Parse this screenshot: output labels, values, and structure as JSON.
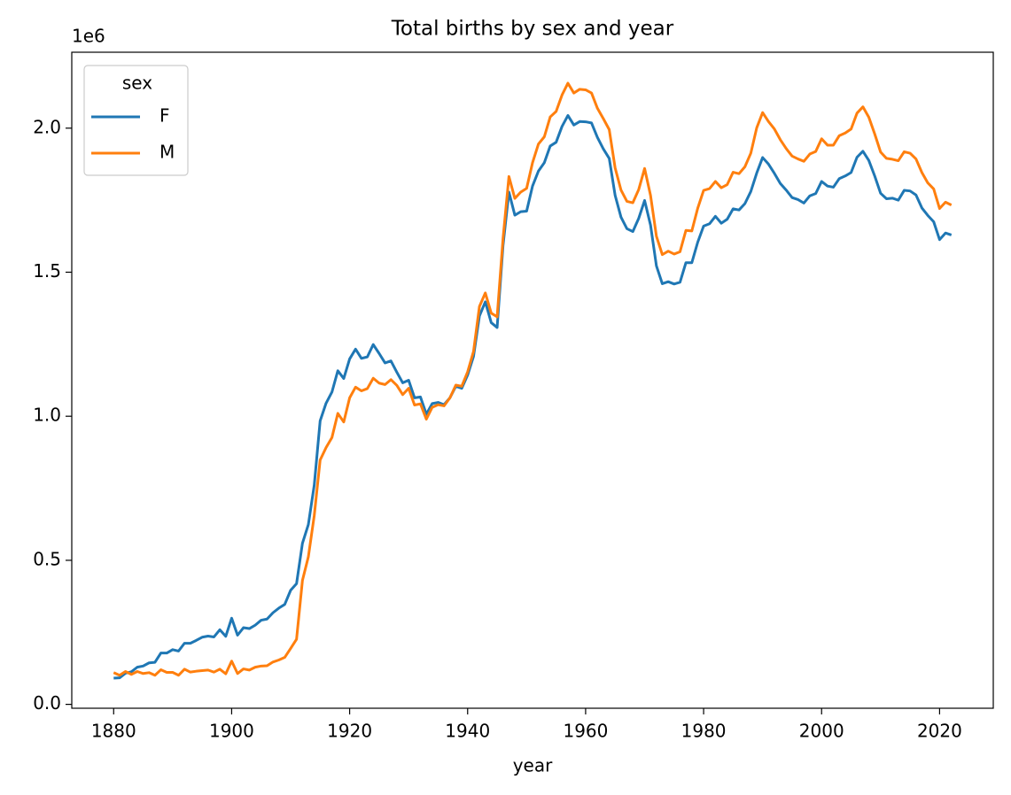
{
  "chart_data": {
    "type": "line",
    "title": "Total births by sex and year",
    "xlabel": "year",
    "y_offset_label": "1e6",
    "legend_title": "sex",
    "legend_loc": "upper left",
    "x": [
      1880,
      1881,
      1882,
      1883,
      1884,
      1885,
      1886,
      1887,
      1888,
      1889,
      1890,
      1891,
      1892,
      1893,
      1894,
      1895,
      1896,
      1897,
      1898,
      1899,
      1900,
      1901,
      1902,
      1903,
      1904,
      1905,
      1906,
      1907,
      1908,
      1909,
      1910,
      1911,
      1912,
      1913,
      1914,
      1915,
      1916,
      1917,
      1918,
      1919,
      1920,
      1921,
      1922,
      1923,
      1924,
      1925,
      1926,
      1927,
      1928,
      1929,
      1930,
      1931,
      1932,
      1933,
      1934,
      1935,
      1936,
      1937,
      1938,
      1939,
      1940,
      1941,
      1942,
      1943,
      1944,
      1945,
      1946,
      1947,
      1948,
      1949,
      1950,
      1951,
      1952,
      1953,
      1954,
      1955,
      1956,
      1957,
      1958,
      1959,
      1960,
      1961,
      1962,
      1963,
      1964,
      1965,
      1966,
      1967,
      1968,
      1969,
      1970,
      1971,
      1972,
      1973,
      1974,
      1975,
      1976,
      1977,
      1978,
      1979,
      1980,
      1981,
      1982,
      1983,
      1984,
      1985,
      1986,
      1987,
      1988,
      1989,
      1990,
      1991,
      1992,
      1993,
      1994,
      1995,
      1996,
      1997,
      1998,
      1999,
      2000,
      2001,
      2002,
      2003,
      2004,
      2005,
      2006,
      2007,
      2008,
      2009,
      2010,
      2011,
      2012,
      2013,
      2014,
      2015,
      2016,
      2017,
      2018,
      2019,
      2020,
      2021,
      2022
    ],
    "series": [
      {
        "name": "F",
        "color": "#1f77b4",
        "values": [
          91000,
          92000,
          108000,
          113000,
          129000,
          133000,
          144000,
          146000,
          178000,
          178000,
          190000,
          185000,
          212000,
          212000,
          222000,
          233000,
          237000,
          234000,
          259000,
          236000,
          299000,
          240000,
          266000,
          263000,
          275000,
          292000,
          296000,
          318000,
          334000,
          347000,
          396000,
          419000,
          559000,
          624000,
          761000,
          984000,
          1045000,
          1084000,
          1158000,
          1131000,
          1199000,
          1233000,
          1201000,
          1206000,
          1249000,
          1218000,
          1185000,
          1192000,
          1153000,
          1116000,
          1125000,
          1064000,
          1067000,
          1007000,
          1044000,
          1048000,
          1040000,
          1064000,
          1104000,
          1097000,
          1143000,
          1208000,
          1348000,
          1397000,
          1325000,
          1308000,
          1593000,
          1778000,
          1698000,
          1710000,
          1712000,
          1799000,
          1851000,
          1880000,
          1938000,
          1951000,
          2006000,
          2044000,
          2011000,
          2023000,
          2022000,
          2018000,
          1968000,
          1928000,
          1895000,
          1767000,
          1691000,
          1651000,
          1641000,
          1687000,
          1749000,
          1664000,
          1522000,
          1460000,
          1467000,
          1459000,
          1465000,
          1533000,
          1533000,
          1604000,
          1660000,
          1668000,
          1694000,
          1670000,
          1684000,
          1720000,
          1716000,
          1738000,
          1780000,
          1844000,
          1898000,
          1875000,
          1843000,
          1808000,
          1785000,
          1759000,
          1752000,
          1740000,
          1765000,
          1773000,
          1815000,
          1799000,
          1795000,
          1825000,
          1834000,
          1846000,
          1899000,
          1920000,
          1888000,
          1834000,
          1774000,
          1755000,
          1757000,
          1750000,
          1784000,
          1782000,
          1768000,
          1723000,
          1697000,
          1675000,
          1613000,
          1636000,
          1629000
        ]
      },
      {
        "name": "M",
        "color": "#ff7f0e",
        "values": [
          110000,
          101000,
          114000,
          104000,
          114000,
          107000,
          110000,
          101000,
          120000,
          111000,
          111000,
          101000,
          122000,
          112000,
          115000,
          117000,
          119000,
          112000,
          122000,
          106000,
          150000,
          107000,
          123000,
          119000,
          129000,
          133000,
          134000,
          147000,
          154000,
          163000,
          194000,
          226000,
          430000,
          512000,
          655000,
          848000,
          891000,
          926000,
          1010000,
          980000,
          1064000,
          1101000,
          1088000,
          1096000,
          1132000,
          1115000,
          1110000,
          1127000,
          1107000,
          1075000,
          1097000,
          1039000,
          1043000,
          990000,
          1031000,
          1040000,
          1036000,
          1064000,
          1108000,
          1104000,
          1154000,
          1225000,
          1381000,
          1428000,
          1358000,
          1345000,
          1617000,
          1832000,
          1756000,
          1778000,
          1791000,
          1880000,
          1945000,
          1970000,
          2039000,
          2058000,
          2115000,
          2156000,
          2122000,
          2135000,
          2133000,
          2122000,
          2069000,
          2033000,
          1995000,
          1862000,
          1785000,
          1746000,
          1741000,
          1787000,
          1860000,
          1767000,
          1625000,
          1561000,
          1573000,
          1563000,
          1571000,
          1645000,
          1643000,
          1722000,
          1784000,
          1790000,
          1815000,
          1793000,
          1804000,
          1847000,
          1842000,
          1866000,
          1913000,
          2001000,
          2054000,
          2023000,
          1997000,
          1960000,
          1929000,
          1903000,
          1893000,
          1885000,
          1910000,
          1919000,
          1963000,
          1941000,
          1941000,
          1974000,
          1983000,
          1997000,
          2052000,
          2074000,
          2038000,
          1980000,
          1917000,
          1895000,
          1892000,
          1887000,
          1918000,
          1913000,
          1893000,
          1846000,
          1810000,
          1789000,
          1721000,
          1743000,
          1733000
        ]
      }
    ],
    "xlim": [
      1872.9,
      2029.1
    ],
    "xticks": [
      1880,
      1900,
      1920,
      1940,
      1960,
      1980,
      2000,
      2020
    ],
    "ylim": [
      -13500,
      2263500
    ],
    "yticks": [
      {
        "value": 0,
        "label": "0.0"
      },
      {
        "value": 500000,
        "label": "0.5"
      },
      {
        "value": 1000000,
        "label": "1.0"
      },
      {
        "value": 1500000,
        "label": "1.5"
      },
      {
        "value": 2000000,
        "label": "2.0"
      }
    ],
    "grid": false
  }
}
